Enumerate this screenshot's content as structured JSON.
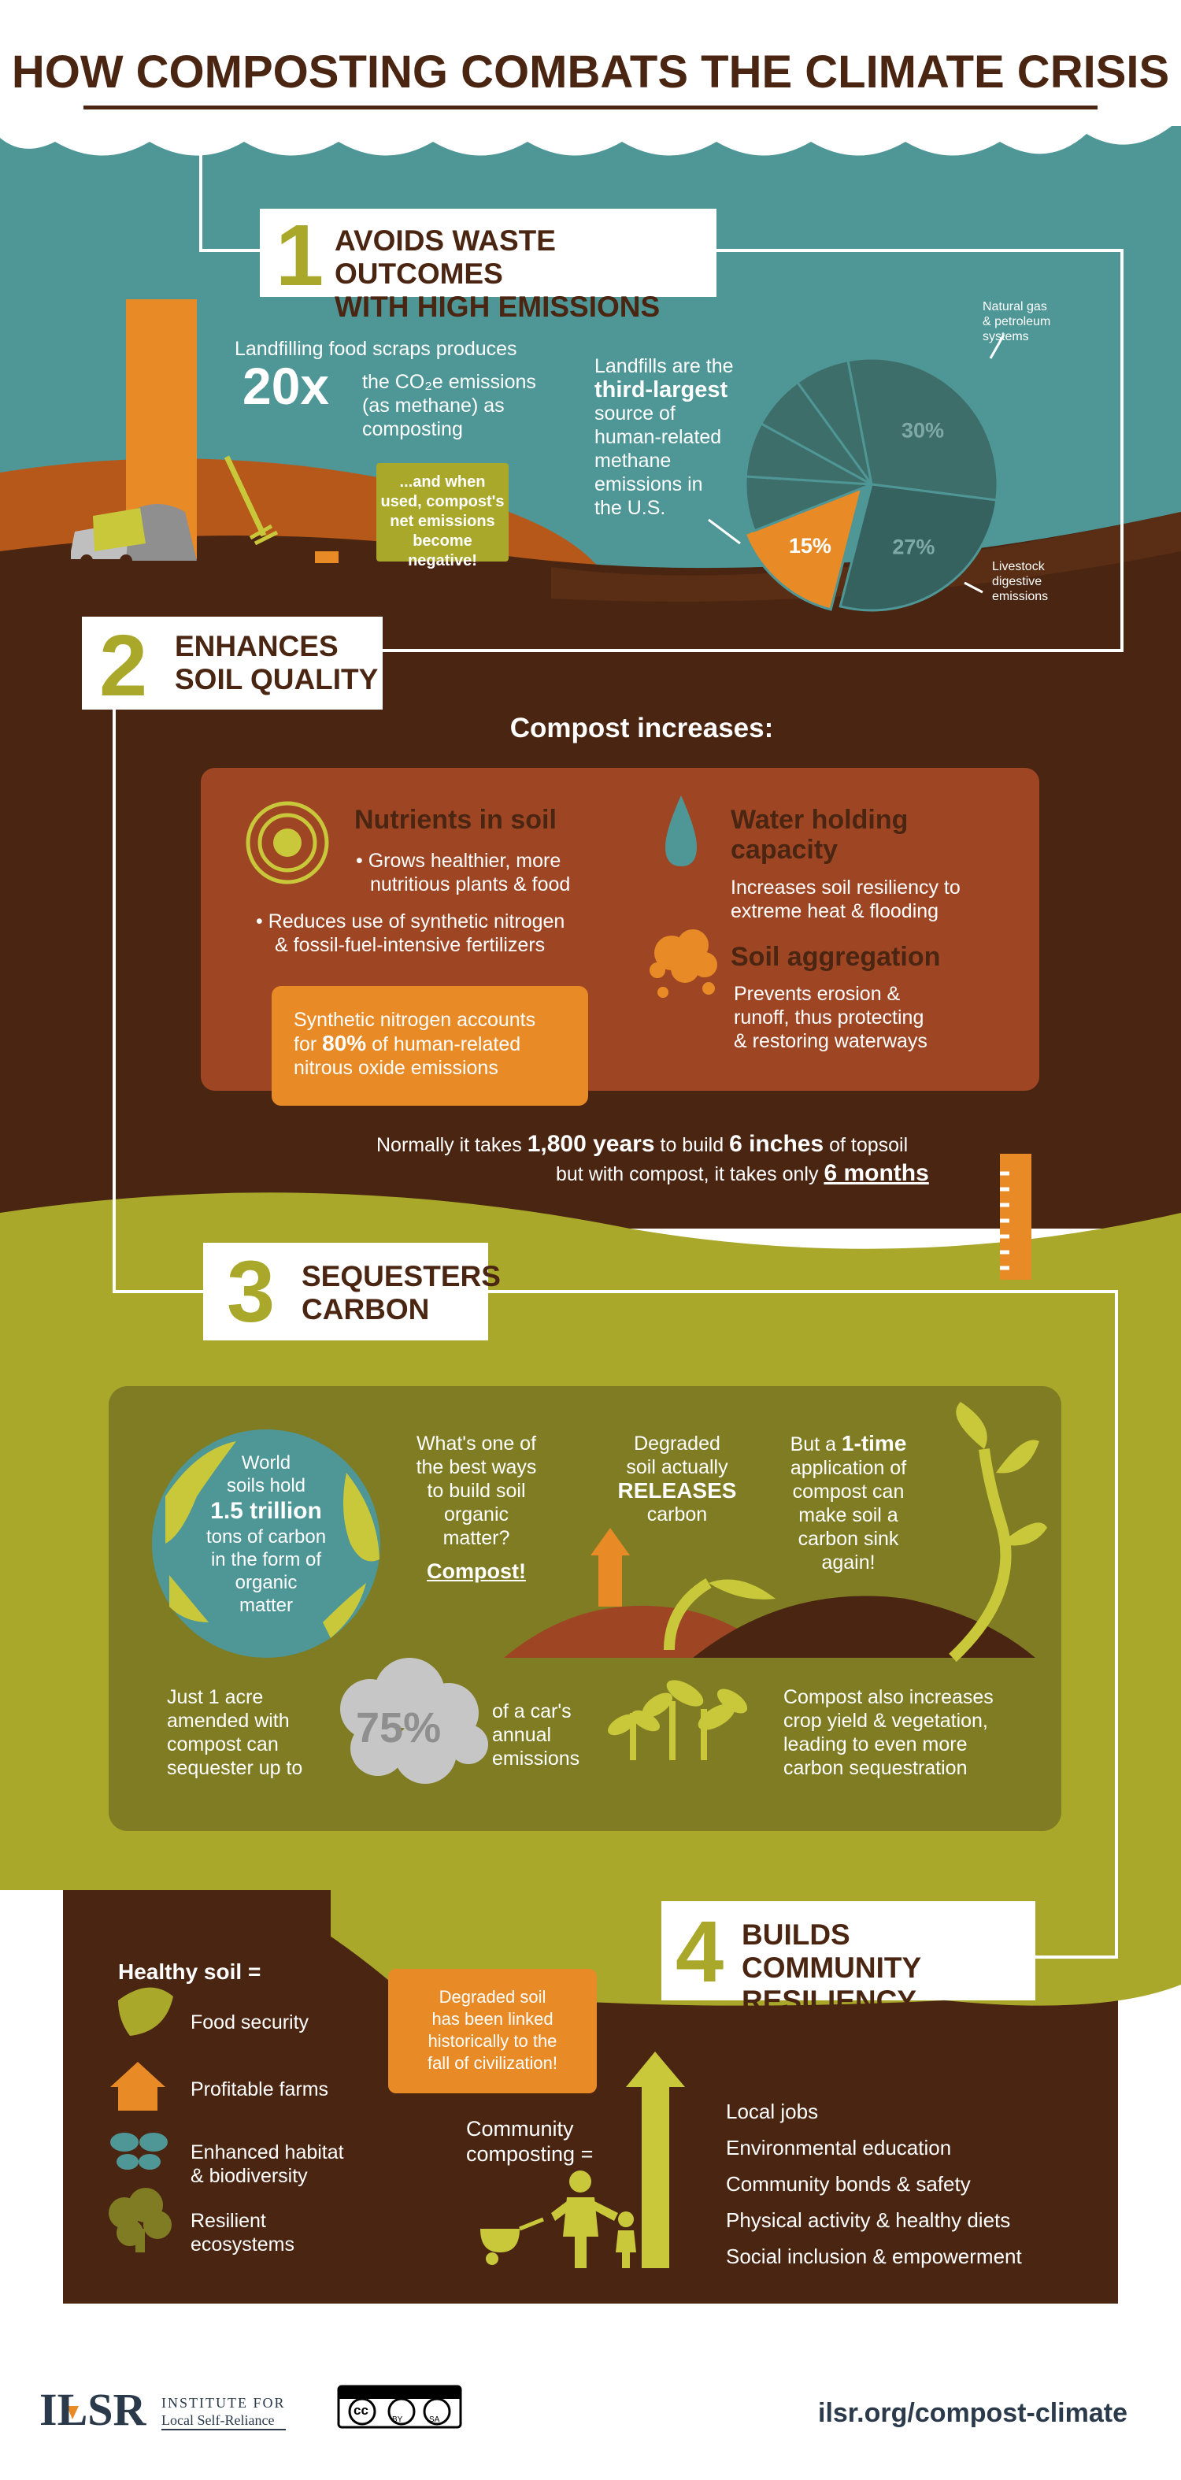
{
  "title": "HOW COMPOSTING COMBATS THE CLIMATE CRISIS",
  "colors": {
    "teal": "#4f9696",
    "brown": "#4a2511",
    "orange": "#e88a25",
    "olive": "#a9a82b",
    "rust": "#9e4624",
    "khaki": "#7f7c23"
  },
  "s1": {
    "num": "1",
    "title_line1": "AVOIDS WASTE OUTCOMES",
    "title_line2": "WITH HIGH EMISSIONS",
    "landfill_intro": "Landfilling food scraps produces",
    "multiplier": "20x",
    "emissions_line1": "the CO₂e emissions",
    "emissions_line2": "(as methane) as",
    "emissions_line3": "composting",
    "negative_line1": "...and when",
    "negative_line2": "used, compost's",
    "negative_line3": "net emissions",
    "negative_line4": "become negative!",
    "landfills_line1": "Landfills are the",
    "landfills_bold1": "third-largest",
    "landfills_line2": "source of",
    "landfills_line3": "human-related",
    "landfills_line4": "methane",
    "landfills_line5": "emissions in",
    "landfills_line6": "the U.S.",
    "pie_natural_gas_line1": "Natural gas",
    "pie_natural_gas_line2": "& petroleum",
    "pie_natural_gas_line3": "systems",
    "pie_livestock_line1": "Livestock",
    "pie_livestock_line2": "digestive",
    "pie_livestock_line3": "emissions"
  },
  "chart_data": {
    "type": "pie",
    "values": [
      15,
      27,
      30
    ],
    "labels": [
      "15%",
      "27%",
      "30%"
    ]
  },
  "s2": {
    "num": "2",
    "title_line1": "ENHANCES",
    "title_line2": "SOIL QUALITY",
    "compost_increases": "Compost increases:",
    "nutrients_title": "Nutrients in soil",
    "nutrients_b1_line1": "• Grows healthier, more",
    "nutrients_b1_line2": "nutritious plants & food",
    "nutrients_b2_line1": "• Reduces use of synthetic nitrogen",
    "nutrients_b2_line2": "& fossil-fuel-intensive fertilizers",
    "synthetic_line1": "Synthetic nitrogen accounts",
    "synthetic_line2a": "for",
    "synthetic_pct": "80%",
    "synthetic_line2b": "of human-related",
    "synthetic_line3": "nitrous oxide emissions",
    "water_title_line1": "Water holding",
    "water_title_line2": "capacity",
    "water_line1": "Increases soil resiliency to",
    "water_line2": "extreme heat & flooding",
    "agg_title": "Soil aggregation",
    "agg_line1": "Prevents erosion &",
    "agg_line2": "runoff, thus protecting",
    "agg_line3": "& restoring waterways",
    "topsoil_a": "Normally it takes",
    "topsoil_years": "1,800 years",
    "topsoil_b": "to build",
    "topsoil_inches": "6 inches",
    "topsoil_c": "of topsoil",
    "topsoil_d": "but with compost, it takes only",
    "topsoil_months": "6 months"
  },
  "s3": {
    "num": "3",
    "title_line1": "SEQUESTERS",
    "title_line2": "CARBON",
    "world_line1": "World",
    "world_line2": "soils hold",
    "world_bold": "1.5 trillion",
    "world_line3": "tons of carbon",
    "world_line4": "in the form of",
    "world_line5": "organic",
    "world_line6": "matter",
    "q_line1": "What's one of",
    "q_line2": "the best ways",
    "q_line3": "to build soil",
    "q_line4": "organic",
    "q_line5": "matter?",
    "q_answer": "Compost!",
    "deg_line1": "Degraded",
    "deg_line2": "soil actually",
    "deg_bold": "RELEASES",
    "deg_line3": "carbon",
    "once_a": "But a",
    "once_bold": "1-time",
    "once_line2": "application of",
    "once_line3": "compost can",
    "once_line4": "make soil a",
    "once_line5": "carbon sink",
    "once_line6": "again!",
    "acre_line1": "Just 1 acre",
    "acre_line2": "amended with",
    "acre_line3": "compost can",
    "acre_line4": "sequester up to",
    "acre_pct": "75%",
    "car_line1": "of a car's",
    "car_line2": "annual",
    "car_line3": "emissions",
    "crop_line1": "Compost also increases",
    "crop_line2": "crop yield & vegetation,",
    "crop_line3": "leading to even more",
    "crop_line4": "carbon sequestration"
  },
  "s4": {
    "num": "4",
    "title_line1": "BUILDS COMMUNITY",
    "title_line2": "RESILIENCY",
    "healthy": "Healthy soil =",
    "items": [
      "Food security",
      "Profitable farms",
      "Enhanced habitat",
      "& biodiversity",
      "Resilient",
      "ecosystems"
    ],
    "civ_line1": "Degraded soil",
    "civ_line2": "has been linked",
    "civ_line3": "historically to the",
    "civ_line4": "fall of civilization!",
    "community_line1": "Community",
    "community_line2": "composting =",
    "benefits": [
      "Local jobs",
      "Environmental education",
      "Community bonds & safety",
      "Physical activity & healthy diets",
      "Social inclusion & empowerment"
    ]
  },
  "footer": {
    "logo_main": "ILSR",
    "logo_sub1": "INSTITUTE FOR",
    "logo_sub2": "Local Self-Reliance",
    "cc_label": "cc",
    "cc_by": "BY",
    "cc_sa": "SA",
    "url": "ilsr.org/compost-climate"
  }
}
